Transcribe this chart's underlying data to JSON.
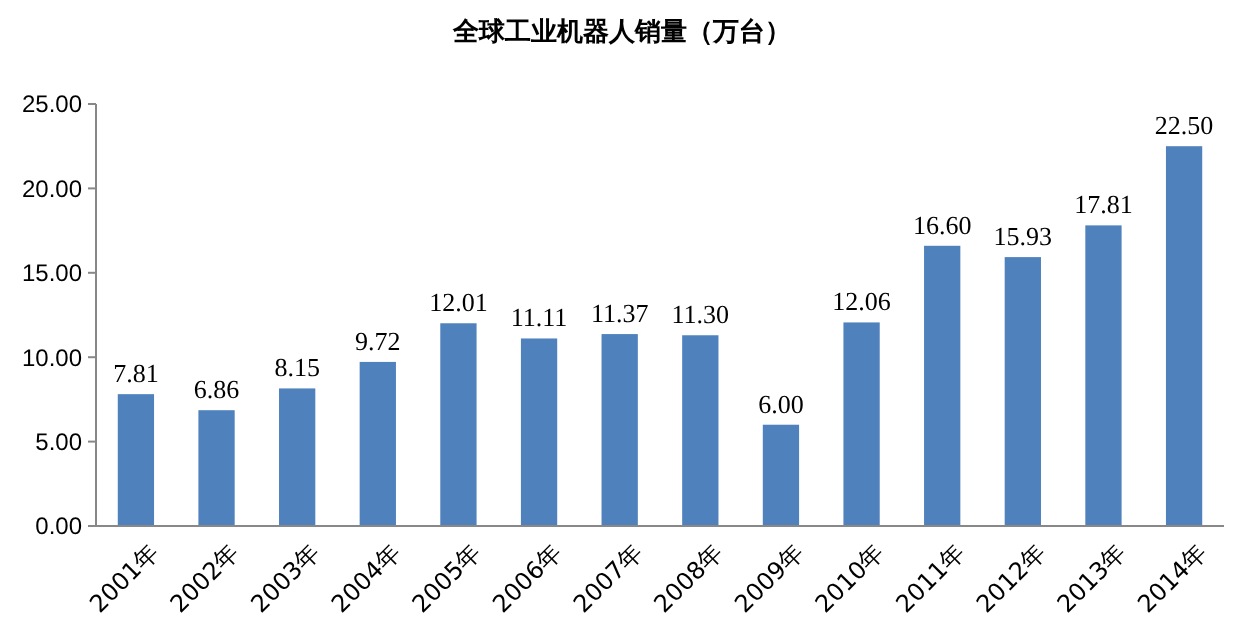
{
  "chart_data": {
    "type": "bar",
    "title": "全球工业机器人销量（万台）",
    "categories": [
      "2001年",
      "2002年",
      "2003年",
      "2004年",
      "2005年",
      "2006年",
      "2007年",
      "2008年",
      "2009年",
      "2010年",
      "2011年",
      "2012年",
      "2013年",
      "2014年"
    ],
    "values": [
      7.81,
      6.86,
      8.15,
      9.72,
      12.01,
      11.11,
      11.37,
      11.3,
      6.0,
      12.06,
      16.6,
      15.93,
      17.81,
      22.5
    ],
    "value_labels": [
      "7.81",
      "6.86",
      "8.15",
      "9.72",
      "12.01",
      "11.11",
      "11.37",
      "11.30",
      "6.00",
      "12.06",
      "16.60",
      "15.93",
      "17.81",
      "22.50"
    ],
    "color": "#4f81bd",
    "ylim": [
      0,
      25
    ],
    "yticks": [
      {
        "value": 0,
        "label": "0.00"
      },
      {
        "value": 5,
        "label": "5.00"
      },
      {
        "value": 10,
        "label": "10.00"
      },
      {
        "value": 15,
        "label": "15.00"
      },
      {
        "value": 20,
        "label": "20.00"
      },
      {
        "value": 25,
        "label": "25.00"
      }
    ],
    "grid": false
  }
}
